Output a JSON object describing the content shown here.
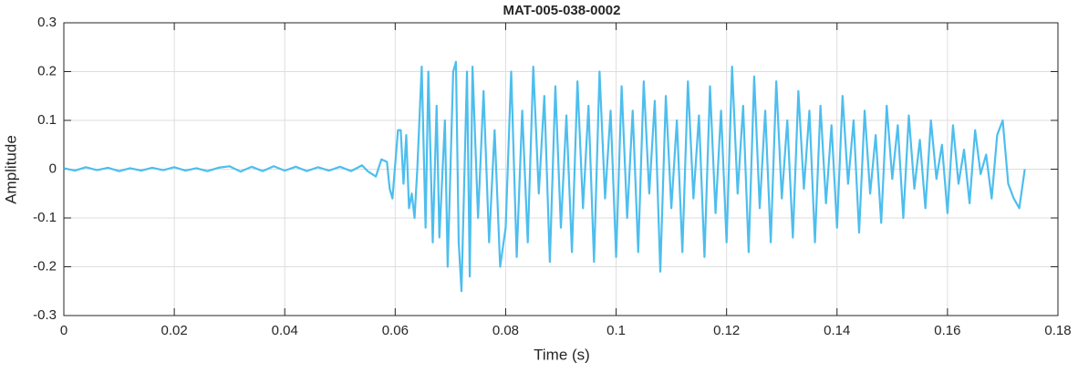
{
  "chart_data": {
    "type": "line",
    "title": "MAT-005-038-0002",
    "x_label": "Time (s)",
    "y_label": "Amplitude",
    "xlim": [
      0,
      0.18
    ],
    "ylim": [
      -0.3,
      0.3
    ],
    "xticks": [
      0,
      0.02,
      0.04,
      0.06,
      0.08,
      0.1,
      0.12,
      0.14,
      0.16,
      0.18
    ],
    "yticks": [
      -0.3,
      -0.2,
      -0.1,
      0,
      0.1,
      0.2,
      0.3
    ],
    "grid": true,
    "series": [
      {
        "color": "#4dbeee",
        "x": [
          0,
          0.002,
          0.004,
          0.006,
          0.008,
          0.01,
          0.012,
          0.014,
          0.016,
          0.018,
          0.02,
          0.022,
          0.024,
          0.026,
          0.028,
          0.03,
          0.032,
          0.034,
          0.036,
          0.038,
          0.04,
          0.042,
          0.044,
          0.046,
          0.048,
          0.05,
          0.052,
          0.054,
          0.055,
          0.0565,
          0.0575,
          0.0585,
          0.059,
          0.0595,
          0.0605,
          0.061,
          0.0615,
          0.062,
          0.0625,
          0.063,
          0.0635,
          0.064,
          0.0648,
          0.0655,
          0.066,
          0.0668,
          0.0675,
          0.068,
          0.069,
          0.0695,
          0.0705,
          0.071,
          0.0715,
          0.072,
          0.073,
          0.0735,
          0.074,
          0.075,
          0.076,
          0.077,
          0.078,
          0.079,
          0.08,
          0.081,
          0.082,
          0.083,
          0.084,
          0.085,
          0.086,
          0.087,
          0.088,
          0.089,
          0.09,
          0.091,
          0.092,
          0.093,
          0.094,
          0.095,
          0.096,
          0.097,
          0.098,
          0.099,
          0.1,
          0.101,
          0.102,
          0.103,
          0.104,
          0.105,
          0.106,
          0.107,
          0.108,
          0.109,
          0.11,
          0.111,
          0.112,
          0.113,
          0.114,
          0.115,
          0.116,
          0.117,
          0.118,
          0.119,
          0.12,
          0.121,
          0.122,
          0.123,
          0.124,
          0.125,
          0.126,
          0.127,
          0.128,
          0.129,
          0.13,
          0.131,
          0.132,
          0.133,
          0.134,
          0.135,
          0.136,
          0.137,
          0.138,
          0.139,
          0.14,
          0.141,
          0.142,
          0.143,
          0.144,
          0.145,
          0.146,
          0.147,
          0.148,
          0.149,
          0.15,
          0.151,
          0.152,
          0.153,
          0.154,
          0.155,
          0.156,
          0.157,
          0.158,
          0.159,
          0.16,
          0.161,
          0.162,
          0.163,
          0.164,
          0.165,
          0.166,
          0.167,
          0.168,
          0.169,
          0.17,
          0.171,
          0.172,
          0.173,
          0.174
        ],
        "values": [
          0.002,
          -0.003,
          0.004,
          -0.002,
          0.003,
          -0.004,
          0.002,
          -0.003,
          0.003,
          -0.002,
          0.004,
          -0.003,
          0.002,
          -0.004,
          0.003,
          0.006,
          -0.005,
          0.005,
          -0.004,
          0.006,
          -0.003,
          0.005,
          -0.004,
          0.004,
          -0.003,
          0.005,
          -0.004,
          0.008,
          -0.004,
          -0.015,
          0.02,
          0.015,
          -0.04,
          -0.06,
          0.08,
          0.08,
          -0.03,
          0.07,
          -0.08,
          -0.05,
          -0.1,
          0.0,
          0.21,
          -0.12,
          0.2,
          -0.15,
          0.13,
          -0.14,
          0.1,
          -0.2,
          0.2,
          0.22,
          -0.15,
          -0.25,
          0.2,
          -0.22,
          0.21,
          -0.1,
          0.16,
          -0.15,
          0.08,
          -0.2,
          -0.12,
          0.2,
          -0.18,
          0.12,
          -0.15,
          0.21,
          -0.05,
          0.15,
          -0.19,
          0.17,
          -0.12,
          0.11,
          -0.17,
          0.18,
          -0.08,
          0.13,
          -0.19,
          0.2,
          -0.06,
          0.12,
          -0.18,
          0.17,
          -0.1,
          0.12,
          -0.17,
          0.18,
          -0.05,
          0.14,
          -0.21,
          0.15,
          -0.08,
          0.1,
          -0.17,
          0.18,
          -0.06,
          0.11,
          -0.18,
          0.17,
          -0.09,
          0.12,
          -0.15,
          0.21,
          -0.05,
          0.13,
          -0.17,
          0.19,
          -0.08,
          0.12,
          -0.15,
          0.18,
          -0.06,
          0.1,
          -0.14,
          0.16,
          -0.04,
          0.12,
          -0.15,
          0.13,
          -0.07,
          0.09,
          -0.12,
          0.15,
          -0.03,
          0.1,
          -0.13,
          0.12,
          -0.05,
          0.07,
          -0.11,
          0.13,
          -0.02,
          0.09,
          -0.1,
          0.11,
          -0.04,
          0.06,
          -0.08,
          0.1,
          -0.02,
          0.05,
          -0.09,
          0.09,
          -0.03,
          0.04,
          -0.07,
          0.08,
          -0.01,
          0.03,
          -0.06,
          0.07,
          0.1,
          -0.03,
          -0.06,
          -0.08,
          0.0
        ]
      }
    ]
  }
}
